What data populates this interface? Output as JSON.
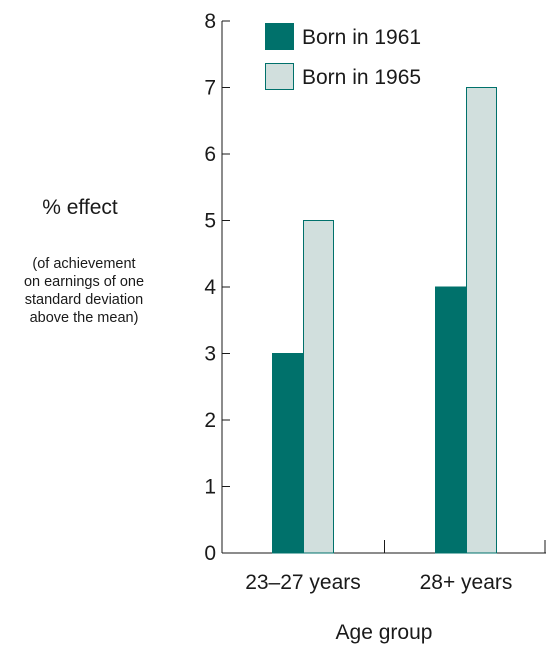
{
  "chart_data": {
    "type": "bar",
    "categories": [
      "23–27 years",
      "28+ years"
    ],
    "series": [
      {
        "name": "Born in 1961",
        "values": [
          3,
          4
        ],
        "color": "#00716b"
      },
      {
        "name": "Born in 1965",
        "values": [
          5,
          7
        ],
        "color": "#d1dfdd"
      }
    ],
    "xlabel": "Age group",
    "ylabel": "% effect",
    "ylabel_note": [
      "(of achievement",
      "on earnings of one",
      "standard deviation",
      "above the mean)"
    ],
    "ylim": [
      0,
      8
    ],
    "yticks": [
      "0",
      "1",
      "2",
      "3",
      "4",
      "5",
      "6",
      "7",
      "8"
    ],
    "grid": false,
    "legend_position": "top"
  }
}
